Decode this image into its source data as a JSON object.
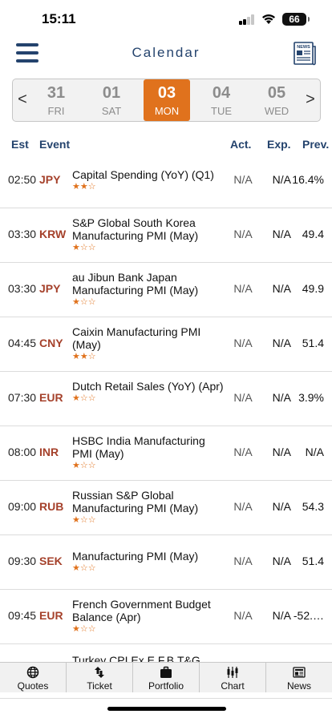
{
  "status": {
    "time": "15:11",
    "battery": "66"
  },
  "header": {
    "title": "Calendar",
    "news_icon_text": "NEWS"
  },
  "date_strip": {
    "prev_arrow": "<",
    "next_arrow": ">",
    "days": [
      {
        "num": "31",
        "dow": "FRI",
        "selected": false
      },
      {
        "num": "01",
        "dow": "SAT",
        "selected": false
      },
      {
        "num": "03",
        "dow": "MON",
        "selected": true
      },
      {
        "num": "04",
        "dow": "TUE",
        "selected": false
      },
      {
        "num": "05",
        "dow": "WED",
        "selected": false
      }
    ]
  },
  "columns": {
    "est": "Est",
    "event": "Event",
    "act": "Act.",
    "exp": "Exp.",
    "prev": "Prev."
  },
  "events": [
    {
      "time": "02:50",
      "currency": "JPY",
      "title": "Capital Spending (YoY) (Q1)",
      "stars": 2,
      "act": "N/A",
      "exp": "N/A",
      "prev": "16.4%"
    },
    {
      "time": "03:30",
      "currency": "KRW",
      "title": "S&P Global South Korea Manufacturing PMI (May)",
      "stars": 1,
      "act": "N/A",
      "exp": "N/A",
      "prev": "49.4"
    },
    {
      "time": "03:30",
      "currency": "JPY",
      "title": "au Jibun Bank Japan Manufacturing PMI (May)",
      "stars": 1,
      "act": "N/A",
      "exp": "N/A",
      "prev": "49.9"
    },
    {
      "time": "04:45",
      "currency": "CNY",
      "title": "Caixin Manufacturing PMI (May)",
      "stars": 2,
      "act": "N/A",
      "exp": "N/A",
      "prev": "51.4"
    },
    {
      "time": "07:30",
      "currency": "EUR",
      "title": "Dutch Retail Sales (YoY) (Apr)",
      "stars": 1,
      "act": "N/A",
      "exp": "N/A",
      "prev": "3.9%"
    },
    {
      "time": "08:00",
      "currency": "INR",
      "title": "HSBC India Manufacturing PMI (May)",
      "stars": 1,
      "act": "N/A",
      "exp": "N/A",
      "prev": "N/A"
    },
    {
      "time": "09:00",
      "currency": "RUB",
      "title": "Russian S&P Global Manufacturing PMI (May)",
      "stars": 1,
      "act": "N/A",
      "exp": "N/A",
      "prev": "54.3"
    },
    {
      "time": "09:30",
      "currency": "SEK",
      "title": "Manufacturing PMI (May)",
      "stars": 1,
      "act": "N/A",
      "exp": "N/A",
      "prev": "51.4"
    },
    {
      "time": "09:45",
      "currency": "EUR",
      "title": "French Government Budget Balance (Apr)",
      "stars": 1,
      "act": "N/A",
      "exp": "N/A",
      "prev": "-52.…"
    },
    {
      "time": "",
      "currency": "",
      "title": "Turkey CPI Ex E.F.B.T&G",
      "stars": 0,
      "act": "",
      "exp": "",
      "prev": ""
    }
  ],
  "tabs": [
    {
      "label": "Quotes",
      "icon": "globe-icon"
    },
    {
      "label": "Ticket",
      "icon": "arrows-updown-icon"
    },
    {
      "label": "Portfolio",
      "icon": "briefcase-icon"
    },
    {
      "label": "Chart",
      "icon": "candlestick-chart-icon"
    },
    {
      "label": "News",
      "icon": "newspaper-icon"
    }
  ],
  "colors": {
    "accent": "#e0721d",
    "navy": "#24436d",
    "currency": "#a5412b"
  }
}
